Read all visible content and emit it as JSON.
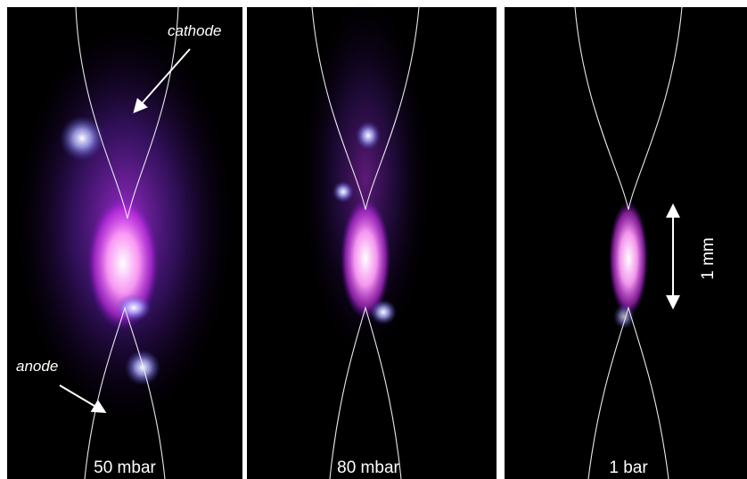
{
  "panels": [
    {
      "label": "50 mbar"
    },
    {
      "label": "80 mbar"
    },
    {
      "label": "1 bar"
    }
  ],
  "annotations": {
    "cathode": "cathode",
    "anode": "anode",
    "scale": "1 mm"
  }
}
